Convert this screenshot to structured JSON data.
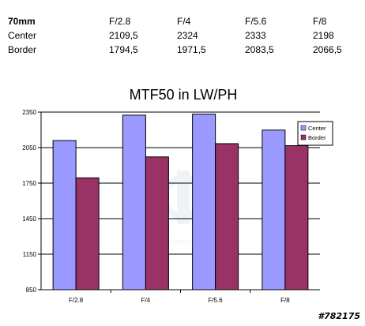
{
  "table": {
    "header": [
      "70mm",
      "F/2.8",
      "F/4",
      "F/5.6",
      "F/8"
    ],
    "rows": [
      [
        "Center",
        "2109,5",
        "2324",
        "2333",
        "2198"
      ],
      [
        "Border",
        "1794,5",
        "1971,5",
        "2083,5",
        "2066,5"
      ]
    ]
  },
  "chart_data": {
    "type": "bar",
    "title": "MTF50 in LW/PH",
    "categories": [
      "F/2.8",
      "F/4",
      "F/5.6",
      "F/8"
    ],
    "series": [
      {
        "name": "Center",
        "values": [
          2109.5,
          2324,
          2333,
          2198
        ],
        "color": "#9999ff"
      },
      {
        "name": "Border",
        "values": [
          1794.5,
          1971.5,
          2083.5,
          2066.5
        ],
        "color": "#993366"
      }
    ],
    "ylim": [
      850,
      2350
    ],
    "yticks": [
      850,
      1150,
      1450,
      1750,
      2050,
      2350
    ],
    "grid": true,
    "legend": "right"
  },
  "watermark": "photozone",
  "image_id": "#782175"
}
